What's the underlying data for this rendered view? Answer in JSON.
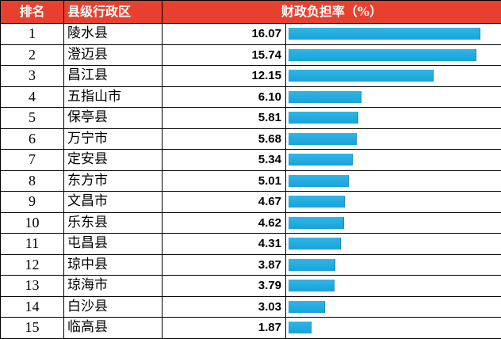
{
  "header": {
    "rank": "排名",
    "name": "县级行政区",
    "burden": "财政负担率（%）"
  },
  "colors": {
    "header_bg": "#e8402f",
    "header_text": "#ffffff",
    "bar": "#22ade3"
  },
  "rows": [
    {
      "rank": "1",
      "name": "陵水县",
      "value": "16.07"
    },
    {
      "rank": "2",
      "name": "澄迈县",
      "value": "15.74"
    },
    {
      "rank": "3",
      "name": "昌江县",
      "value": "12.15"
    },
    {
      "rank": "4",
      "name": "五指山市",
      "value": "6.10"
    },
    {
      "rank": "5",
      "name": "保亭县",
      "value": "5.81"
    },
    {
      "rank": "6",
      "name": "万宁市",
      "value": "5.68"
    },
    {
      "rank": "7",
      "name": "定安县",
      "value": "5.34"
    },
    {
      "rank": "8",
      "name": "东方市",
      "value": "5.01"
    },
    {
      "rank": "9",
      "name": "文昌市",
      "value": "4.67"
    },
    {
      "rank": "10",
      "name": "乐东县",
      "value": "4.62"
    },
    {
      "rank": "11",
      "name": "屯昌县",
      "value": "4.31"
    },
    {
      "rank": "12",
      "name": "琼中县",
      "value": "3.87"
    },
    {
      "rank": "13",
      "name": "琼海市",
      "value": "3.79"
    },
    {
      "rank": "14",
      "name": "白沙县",
      "value": "3.03"
    },
    {
      "rank": "15",
      "name": "临高县",
      "value": "1.87"
    }
  ],
  "chart_data": {
    "type": "bar",
    "categories": [
      "陵水县",
      "澄迈县",
      "昌江县",
      "五指山市",
      "保亭县",
      "万宁市",
      "定安县",
      "东方市",
      "文昌市",
      "乐东县",
      "屯昌县",
      "琼中县",
      "琼海市",
      "白沙县",
      "临高县"
    ],
    "values": [
      16.07,
      15.74,
      12.15,
      6.1,
      5.81,
      5.68,
      5.34,
      5.01,
      4.67,
      4.62,
      4.31,
      3.87,
      3.79,
      3.03,
      1.87
    ],
    "orientation": "horizontal",
    "title": "",
    "xlabel": "",
    "ylabel": "财政负担率（%）"
  }
}
